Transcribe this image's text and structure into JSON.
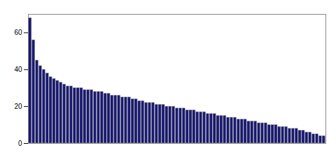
{
  "chart_data": {
    "type": "bar",
    "values": [
      68,
      56,
      45,
      42,
      40,
      38,
      36,
      35,
      34,
      33,
      32,
      31,
      31,
      30,
      30,
      30,
      29,
      29,
      29,
      28,
      28,
      28,
      27,
      27,
      26,
      26,
      26,
      25,
      25,
      25,
      24,
      24,
      23,
      23,
      22,
      22,
      22,
      21,
      21,
      21,
      20,
      20,
      20,
      19,
      19,
      19,
      18,
      18,
      18,
      17,
      17,
      17,
      16,
      16,
      16,
      15,
      15,
      15,
      14,
      14,
      14,
      13,
      13,
      13,
      12,
      12,
      12,
      11,
      11,
      11,
      10,
      10,
      10,
      9,
      9,
      9,
      8,
      8,
      8,
      7,
      7,
      6,
      6,
      5,
      5,
      4,
      4
    ],
    "color": "#191970",
    "ylim": [
      0,
      70
    ],
    "yticks": [
      0,
      20,
      40,
      60
    ],
    "grid": false,
    "tick_labels": "y"
  }
}
